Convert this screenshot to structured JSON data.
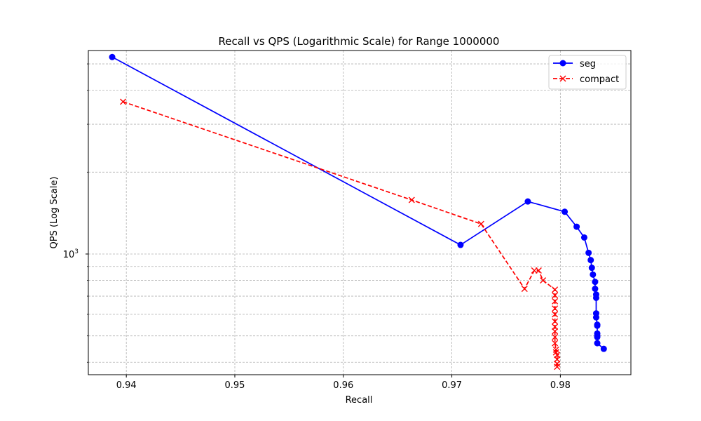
{
  "chart_data": {
    "type": "line",
    "title": "Recall vs QPS (Logarithmic Scale) for Range 1000000",
    "xlabel": "Recall",
    "ylabel": "QPS (Log Scale)",
    "yscale": "log",
    "xlim": [
      0.9365,
      0.9865
    ],
    "ylim": [
      360,
      5600
    ],
    "x_ticks": [
      0.94,
      0.95,
      0.96,
      0.97,
      0.98
    ],
    "x_tick_labels": [
      "0.94",
      "0.95",
      "0.96",
      "0.97",
      "0.98"
    ],
    "y_major_tick": 1000,
    "y_major_tick_label": "10",
    "y_major_tick_exp": "3",
    "y_minor_ticks": [
      400,
      500,
      600,
      700,
      800,
      900,
      2000,
      3000,
      4000,
      5000
    ],
    "grid": true,
    "legend_position": "top-right",
    "series": [
      {
        "name": "seg",
        "color": "#0000ff",
        "linestyle": "solid",
        "marker": "circle",
        "x": [
          0.9387,
          0.9708,
          0.977,
          0.9804,
          0.9815,
          0.9822,
          0.9826,
          0.9828,
          0.9829,
          0.983,
          0.9832,
          0.9832,
          0.9833,
          0.9833,
          0.9833,
          0.9833,
          0.9834,
          0.9834,
          0.9834,
          0.9834,
          0.9834,
          0.9834,
          0.984
        ],
        "values": [
          5300,
          1080,
          1560,
          1430,
          1260,
          1150,
          1010,
          950,
          890,
          840,
          790,
          745,
          710,
          690,
          605,
          585,
          550,
          545,
          510,
          500,
          495,
          470,
          448
        ]
      },
      {
        "name": "compact",
        "color": "#ff0000",
        "linestyle": "dashed",
        "marker": "x",
        "x": [
          0.9397,
          0.9663,
          0.9727,
          0.9767,
          0.9776,
          0.978,
          0.9784,
          0.9795,
          0.9795,
          0.9795,
          0.9795,
          0.9795,
          0.9795,
          0.9795,
          0.9795,
          0.9795,
          0.9795,
          0.9796,
          0.9796,
          0.9797,
          0.9797,
          0.9797,
          0.9797
        ],
        "values": [
          3630,
          1580,
          1290,
          745,
          870,
          870,
          800,
          740,
          705,
          670,
          630,
          600,
          565,
          540,
          520,
          495,
          470,
          445,
          435,
          425,
          410,
          395,
          385
        ]
      }
    ]
  }
}
